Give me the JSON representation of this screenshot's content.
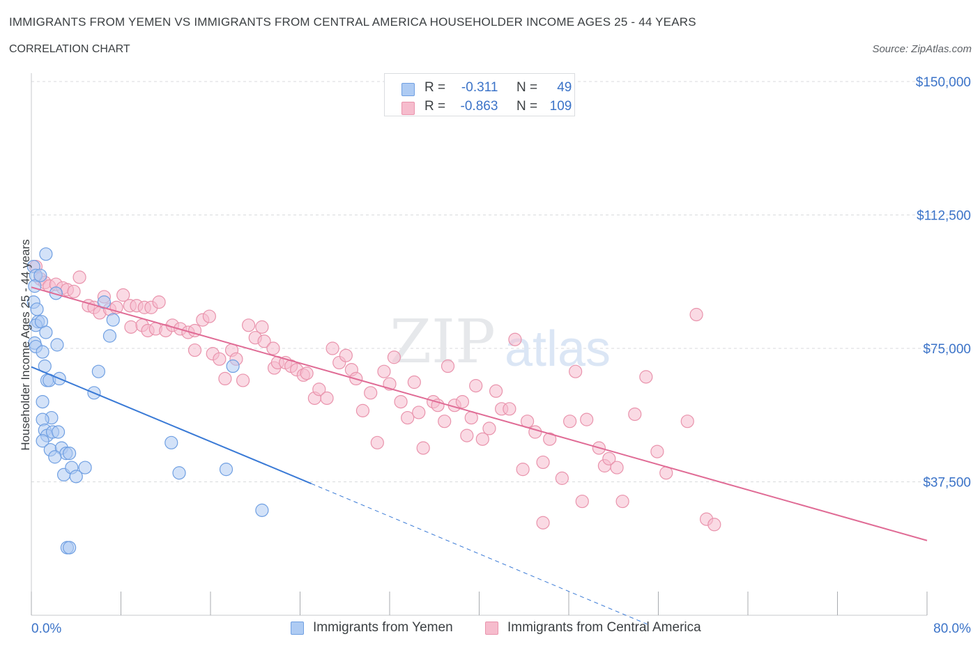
{
  "title": "IMMIGRANTS FROM YEMEN VS IMMIGRANTS FROM CENTRAL AMERICA HOUSEHOLDER INCOME AGES 25 - 44 YEARS",
  "subtitle": "CORRELATION CHART",
  "source": "Source: ZipAtlas.com",
  "watermark": {
    "zip": "ZIP",
    "atlas": "atlas"
  },
  "legend_top": {
    "r_label": "R =",
    "n_label": "N =",
    "rows": [
      {
        "r": "-0.311",
        "n": "49"
      },
      {
        "r": "-0.863",
        "n": "109"
      }
    ]
  },
  "colors": {
    "blue_fill": "#aecbf3",
    "blue_stroke": "#6f9fe2",
    "blue_line": "#3a7ad6",
    "pink_fill": "#f6bccd",
    "pink_stroke": "#e993ac",
    "pink_line": "#e06b95",
    "axis_label": "#3b73c8",
    "grid": "#d8dadd"
  },
  "chart_data": {
    "type": "scatter",
    "title": "IMMIGRANTS FROM YEMEN VS IMMIGRANTS FROM CENTRAL AMERICA HOUSEHOLDER INCOME AGES 25 - 44 YEARS",
    "xlabel": "",
    "ylabel": "Householder Income Ages 25 - 44 years",
    "xlim": [
      0,
      80
    ],
    "ylim": [
      0,
      150000
    ],
    "x_tick_labels": [
      "0.0%",
      "80.0%"
    ],
    "y_ticks": [
      37500,
      75000,
      112500,
      150000
    ],
    "y_tick_labels": [
      "$37,500",
      "$75,000",
      "$112,500",
      "$150,000"
    ],
    "grid": true,
    "legend_position": "bottom",
    "series": [
      {
        "name": "Immigrants from Yemen",
        "color": "#aecbf3",
        "r": -0.311,
        "n": 49,
        "trend": {
          "x0": 0,
          "y0": 69800,
          "x1": 25,
          "y1": 37000,
          "dashed_to_x": 55,
          "dashed_to_y": -2500
        },
        "points": [
          [
            0.2,
            98000
          ],
          [
            0.4,
            95500
          ],
          [
            0.3,
            92500
          ],
          [
            0.2,
            88000
          ],
          [
            0.5,
            86000
          ],
          [
            0.6,
            82500
          ],
          [
            0.4,
            81500
          ],
          [
            0.9,
            82500
          ],
          [
            1.3,
            79500
          ],
          [
            0.3,
            76500
          ],
          [
            0.4,
            75500
          ],
          [
            1.0,
            74000
          ],
          [
            2.3,
            76000
          ],
          [
            1.2,
            70000
          ],
          [
            1.4,
            66000
          ],
          [
            1.6,
            66000
          ],
          [
            2.5,
            66500
          ],
          [
            1.0,
            60000
          ],
          [
            1.8,
            55500
          ],
          [
            1.0,
            55000
          ],
          [
            1.2,
            52000
          ],
          [
            1.4,
            50500
          ],
          [
            1.9,
            51500
          ],
          [
            2.4,
            51500
          ],
          [
            1.0,
            49000
          ],
          [
            1.7,
            46500
          ],
          [
            2.7,
            47000
          ],
          [
            3.1,
            45500
          ],
          [
            3.4,
            45500
          ],
          [
            2.1,
            44500
          ],
          [
            2.9,
            39500
          ],
          [
            3.6,
            41500
          ],
          [
            4.0,
            39000
          ],
          [
            4.8,
            41500
          ],
          [
            5.6,
            62500
          ],
          [
            6.0,
            68500
          ],
          [
            6.5,
            88000
          ],
          [
            7.3,
            83000
          ],
          [
            7.0,
            78500
          ],
          [
            12.5,
            48500
          ],
          [
            13.2,
            40000
          ],
          [
            17.4,
            41000
          ],
          [
            18.0,
            70000
          ],
          [
            20.6,
            29500
          ],
          [
            3.2,
            19000
          ],
          [
            3.4,
            19000
          ],
          [
            1.3,
            101500
          ],
          [
            0.8,
            95500
          ],
          [
            2.2,
            90500
          ]
        ]
      },
      {
        "name": "Immigrants from Central America",
        "color": "#f6bccd",
        "r": -0.863,
        "n": 109,
        "trend": {
          "x0": 0,
          "y0": 92200,
          "x1": 80,
          "y1": 21000
        },
        "points": [
          [
            0.4,
            98000
          ],
          [
            0.8,
            94500
          ],
          [
            1.2,
            93500
          ],
          [
            1.6,
            92500
          ],
          [
            2.2,
            93000
          ],
          [
            2.8,
            92000
          ],
          [
            3.2,
            91500
          ],
          [
            3.8,
            91000
          ],
          [
            4.3,
            95000
          ],
          [
            5.1,
            87000
          ],
          [
            5.6,
            86500
          ],
          [
            6.1,
            85000
          ],
          [
            6.5,
            89500
          ],
          [
            7.0,
            86000
          ],
          [
            7.6,
            86500
          ],
          [
            8.2,
            90000
          ],
          [
            8.8,
            87000
          ],
          [
            9.4,
            87000
          ],
          [
            10.1,
            86500
          ],
          [
            10.7,
            86500
          ],
          [
            11.4,
            88000
          ],
          [
            8.9,
            81000
          ],
          [
            9.9,
            81500
          ],
          [
            10.4,
            80000
          ],
          [
            11.1,
            80500
          ],
          [
            12.0,
            80000
          ],
          [
            12.6,
            81500
          ],
          [
            13.3,
            80500
          ],
          [
            14.0,
            79500
          ],
          [
            14.6,
            80000
          ],
          [
            15.3,
            83000
          ],
          [
            15.9,
            84000
          ],
          [
            14.6,
            74500
          ],
          [
            16.2,
            73500
          ],
          [
            16.8,
            72000
          ],
          [
            17.3,
            66500
          ],
          [
            17.9,
            74500
          ],
          [
            18.3,
            72000
          ],
          [
            18.9,
            66000
          ],
          [
            19.4,
            81500
          ],
          [
            20.0,
            78000
          ],
          [
            20.6,
            81000
          ],
          [
            20.8,
            77000
          ],
          [
            21.6,
            75000
          ],
          [
            21.7,
            69500
          ],
          [
            22.0,
            71000
          ],
          [
            22.7,
            71000
          ],
          [
            23.2,
            70000
          ],
          [
            23.7,
            69000
          ],
          [
            24.3,
            67500
          ],
          [
            24.6,
            68000
          ],
          [
            25.3,
            61000
          ],
          [
            25.7,
            63500
          ],
          [
            26.4,
            61000
          ],
          [
            26.9,
            75000
          ],
          [
            27.5,
            71000
          ],
          [
            28.1,
            73000
          ],
          [
            28.6,
            69000
          ],
          [
            29.0,
            66500
          ],
          [
            29.6,
            57500
          ],
          [
            30.3,
            62500
          ],
          [
            30.9,
            48500
          ],
          [
            31.5,
            68500
          ],
          [
            32.0,
            65000
          ],
          [
            32.4,
            72500
          ],
          [
            33.0,
            60000
          ],
          [
            33.6,
            55500
          ],
          [
            34.2,
            65500
          ],
          [
            34.6,
            57000
          ],
          [
            35.0,
            47000
          ],
          [
            35.9,
            60000
          ],
          [
            36.3,
            59000
          ],
          [
            36.9,
            54500
          ],
          [
            37.2,
            70000
          ],
          [
            37.8,
            59000
          ],
          [
            38.5,
            60000
          ],
          [
            38.9,
            50500
          ],
          [
            39.3,
            55500
          ],
          [
            39.7,
            64500
          ],
          [
            40.3,
            49500
          ],
          [
            40.9,
            52500
          ],
          [
            41.5,
            63000
          ],
          [
            42.0,
            58000
          ],
          [
            42.7,
            58000
          ],
          [
            43.2,
            77500
          ],
          [
            43.9,
            41000
          ],
          [
            44.3,
            54500
          ],
          [
            45.0,
            51500
          ],
          [
            45.7,
            43000
          ],
          [
            46.3,
            49500
          ],
          [
            47.4,
            38500
          ],
          [
            48.1,
            54500
          ],
          [
            48.6,
            68500
          ],
          [
            49.2,
            32000
          ],
          [
            50.7,
            47000
          ],
          [
            51.2,
            42000
          ],
          [
            51.6,
            44000
          ],
          [
            52.3,
            41500
          ],
          [
            52.8,
            32000
          ],
          [
            53.9,
            56500
          ],
          [
            54.9,
            67000
          ],
          [
            55.9,
            46000
          ],
          [
            56.7,
            40000
          ],
          [
            58.6,
            54500
          ],
          [
            59.4,
            84500
          ],
          [
            60.3,
            27000
          ],
          [
            61.0,
            25500
          ],
          [
            45.7,
            26000
          ],
          [
            49.6,
            55000
          ]
        ]
      }
    ]
  },
  "bottom_legend": [
    {
      "label": "Immigrants from Yemen"
    },
    {
      "label": "Immigrants from Central America"
    }
  ]
}
